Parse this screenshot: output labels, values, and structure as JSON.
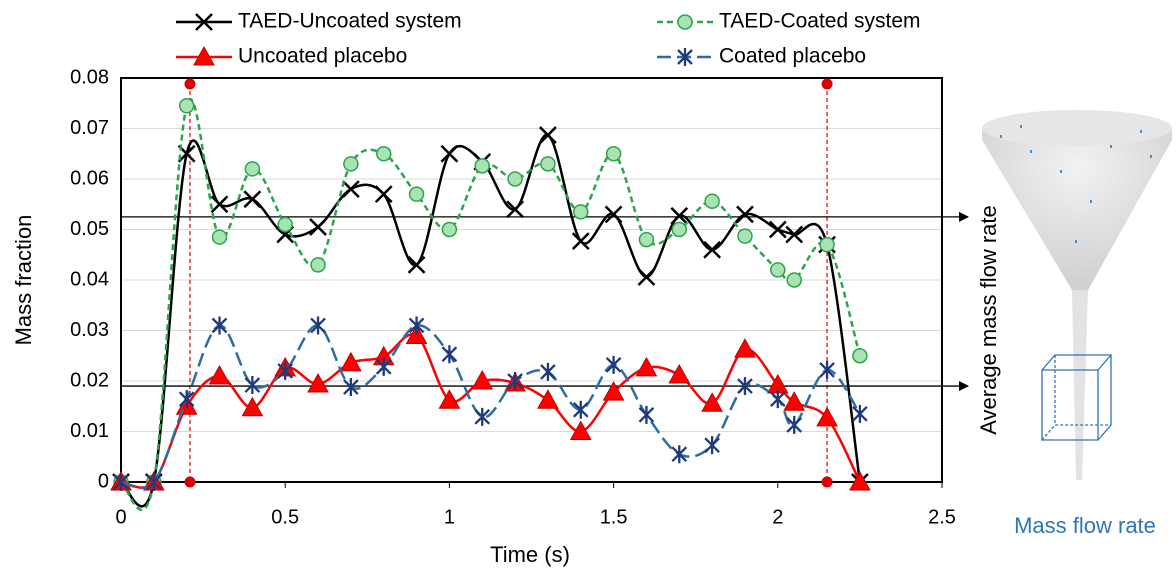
{
  "chart_data": {
    "type": "line",
    "x_label": "Time (s)",
    "y_label": "Mass fraction",
    "x": [
      0,
      0.1,
      0.2,
      0.3,
      0.4,
      0.5,
      0.6,
      0.7,
      0.8,
      0.9,
      1.0,
      1.1,
      1.2,
      1.3,
      1.4,
      1.5,
      1.6,
      1.7,
      1.8,
      1.9,
      2.0,
      2.05,
      2.15,
      2.25
    ],
    "series": [
      {
        "name": "TAED-Uncoated system",
        "color": "#000000",
        "marker": "x",
        "dash": "solid",
        "values": [
          0,
          0,
          0.065,
          0.055,
          0.056,
          0.049,
          0.0505,
          0.058,
          0.057,
          0.043,
          0.065,
          0.0634,
          0.054,
          0.0687,
          0.0477,
          0.053,
          0.0406,
          0.0527,
          0.046,
          0.053,
          0.05,
          0.049,
          0.047,
          0
        ]
      },
      {
        "name": "TAED-Coated system",
        "color": "#2ca54a",
        "marker": "circle",
        "dash": "dashed",
        "values": [
          0,
          0,
          0.0745,
          0.0485,
          0.062,
          0.051,
          0.043,
          0.063,
          0.065,
          0.057,
          0.05,
          0.0626,
          0.06,
          0.063,
          0.0535,
          0.065,
          0.048,
          0.05,
          0.0556,
          0.0487,
          0.042,
          0.04,
          0.047,
          0.025
        ]
      },
      {
        "name": "Uncoated placebo",
        "color": "#ff0000",
        "marker": "triangle",
        "dash": "solid",
        "values": [
          0,
          0,
          0.015,
          0.021,
          0.0147,
          0.0226,
          0.0194,
          0.0236,
          0.0248,
          0.029,
          0.0162,
          0.02,
          0.0196,
          0.0162,
          0.01,
          0.0178,
          0.0226,
          0.0212,
          0.0156,
          0.0263,
          0.0192,
          0.0158,
          0.0127,
          0
        ]
      },
      {
        "name": "Coated placebo",
        "color": "#2e6da4",
        "marker": "asterisk",
        "dash": "longdash",
        "values": [
          0,
          0,
          0.0164,
          0.031,
          0.0192,
          0.022,
          0.031,
          0.0188,
          0.0228,
          0.031,
          0.0253,
          0.0129,
          0.02,
          0.0218,
          0.0143,
          0.0232,
          0.0133,
          0.0055,
          0.0073,
          0.019,
          0.0164,
          0.0113,
          0.0222,
          0.0135
        ]
      }
    ],
    "xlim": [
      0,
      2.5
    ],
    "xticks": [
      0,
      0.5,
      1,
      1.5,
      2,
      2.5
    ],
    "ylim": [
      0,
      0.08
    ],
    "yticks": [
      0,
      0.01,
      0.02,
      0.03,
      0.04,
      0.05,
      0.06,
      0.07,
      0.08
    ],
    "grid": true,
    "vertical_reference_lines": [
      0.21,
      2.15
    ],
    "horizontal_reference_lines": [
      0.0525,
      0.019
    ],
    "annotations": [
      "Average mass flow rate",
      "Mass flow rate"
    ]
  }
}
